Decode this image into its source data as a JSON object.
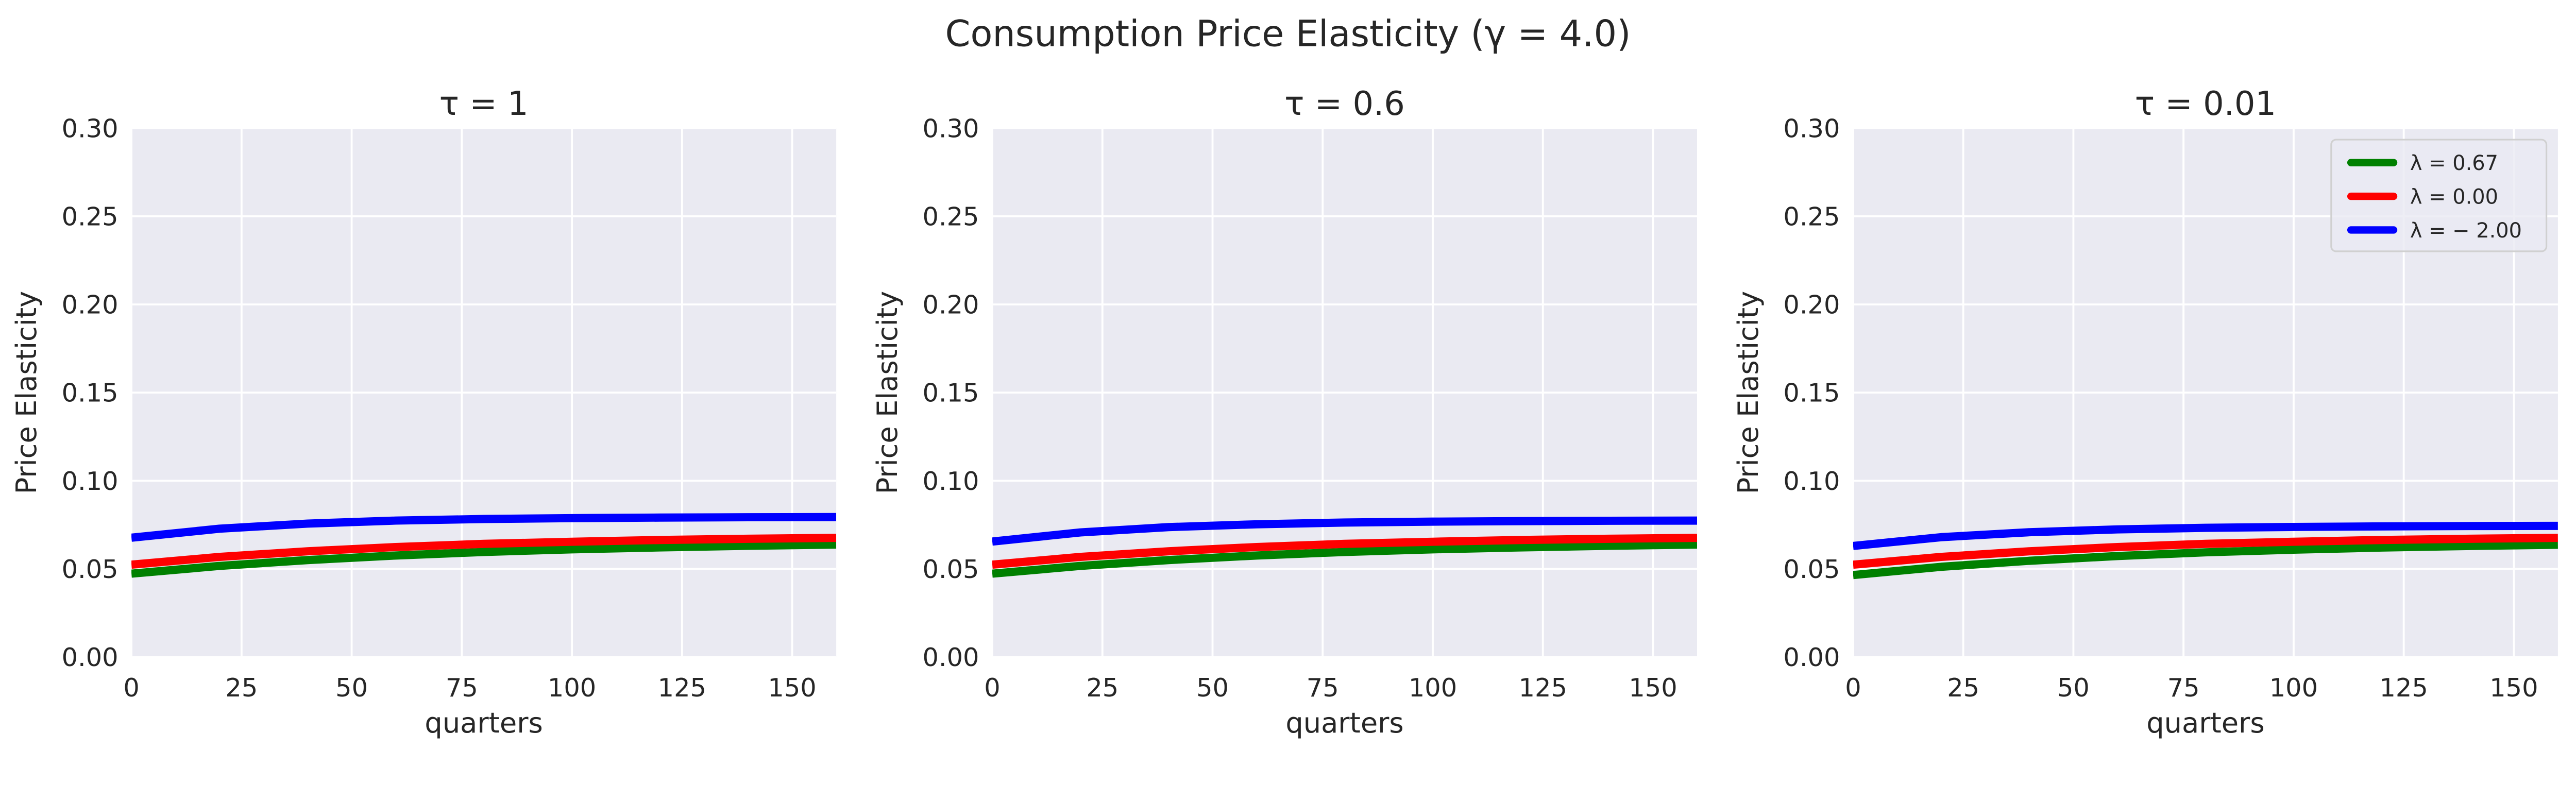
{
  "chart_data": {
    "type": "line",
    "title": "Consumption Price Elasticity (γ = 4.0)",
    "style": {
      "background": "#eaeaf2",
      "grid": true,
      "grid_color": "#ffffff"
    },
    "legend": {
      "placement": "top-right",
      "panel": 2,
      "entries": [
        {
          "label": "λ = 0.67",
          "color": "#008000"
        },
        {
          "label": "λ = 0.00",
          "color": "#ff0000"
        },
        {
          "label": "λ = − 2.00",
          "color": "#0000ff"
        }
      ]
    },
    "x": [
      0,
      20,
      40,
      60,
      80,
      100,
      120,
      140,
      160
    ],
    "panels": [
      {
        "title": "τ = 1",
        "xlabel": "quarters",
        "ylabel": "Price Elasticity",
        "xlim": [
          0,
          160
        ],
        "ylim": [
          0,
          0.3
        ],
        "xticks": [
          "0",
          "25",
          "50",
          "75",
          "100",
          "125",
          "150"
        ],
        "yticks": [
          "0.00",
          "0.05",
          "0.10",
          "0.15",
          "0.20",
          "0.25",
          "0.30"
        ],
        "series": [
          {
            "name": "λ = 0.67",
            "color": "#008000",
            "values": [
              0.0473,
              0.0517,
              0.055,
              0.0576,
              0.0596,
              0.0611,
              0.0622,
              0.0631,
              0.0638
            ]
          },
          {
            "name": "λ = 0.00",
            "color": "#ff0000",
            "values": [
              0.0524,
              0.0568,
              0.06,
              0.0624,
              0.0642,
              0.0654,
              0.0664,
              0.0671,
              0.0676
            ]
          },
          {
            "name": "λ = − 2.00",
            "color": "#0000ff",
            "values": [
              0.0677,
              0.0728,
              0.0757,
              0.0774,
              0.0783,
              0.0788,
              0.0791,
              0.0793,
              0.0794
            ]
          }
        ]
      },
      {
        "title": "τ = 0.6",
        "xlabel": "quarters",
        "ylabel": "Price Elasticity",
        "xlim": [
          0,
          160
        ],
        "ylim": [
          0,
          0.3
        ],
        "xticks": [
          "0",
          "25",
          "50",
          "75",
          "100",
          "125",
          "150"
        ],
        "yticks": [
          "0.00",
          "0.05",
          "0.10",
          "0.15",
          "0.20",
          "0.25",
          "0.30"
        ],
        "series": [
          {
            "name": "λ = 0.67",
            "color": "#008000",
            "values": [
              0.0473,
              0.0517,
              0.055,
              0.0576,
              0.0596,
              0.0611,
              0.0622,
              0.0631,
              0.0638
            ]
          },
          {
            "name": "λ = 0.00",
            "color": "#ff0000",
            "values": [
              0.0524,
              0.0568,
              0.06,
              0.0624,
              0.0642,
              0.0654,
              0.0664,
              0.0671,
              0.0676
            ]
          },
          {
            "name": "λ = − 2.00",
            "color": "#0000ff",
            "values": [
              0.0655,
              0.0707,
              0.0737,
              0.0753,
              0.0763,
              0.0768,
              0.0771,
              0.0773,
              0.0774
            ]
          }
        ]
      },
      {
        "title": "τ = 0.01",
        "xlabel": "quarters",
        "ylabel": "Price Elasticity",
        "xlim": [
          0,
          160
        ],
        "ylim": [
          0,
          0.3
        ],
        "xticks": [
          "0",
          "25",
          "50",
          "75",
          "100",
          "125",
          "150"
        ],
        "yticks": [
          "0.00",
          "0.05",
          "0.10",
          "0.15",
          "0.20",
          "0.25",
          "0.30"
        ],
        "series": [
          {
            "name": "λ = 0.67",
            "color": "#008000",
            "values": [
              0.0465,
              0.0512,
              0.0546,
              0.0573,
              0.0594,
              0.0609,
              0.0621,
              0.063,
              0.0637
            ]
          },
          {
            "name": "λ = 0.00",
            "color": "#ff0000",
            "values": [
              0.0524,
              0.0568,
              0.06,
              0.0624,
              0.0642,
              0.0654,
              0.0664,
              0.0671,
              0.0676
            ]
          },
          {
            "name": "λ = − 2.00",
            "color": "#0000ff",
            "values": [
              0.063,
              0.068,
              0.0708,
              0.0724,
              0.0733,
              0.0738,
              0.0741,
              0.0743,
              0.0744
            ]
          }
        ]
      }
    ]
  }
}
